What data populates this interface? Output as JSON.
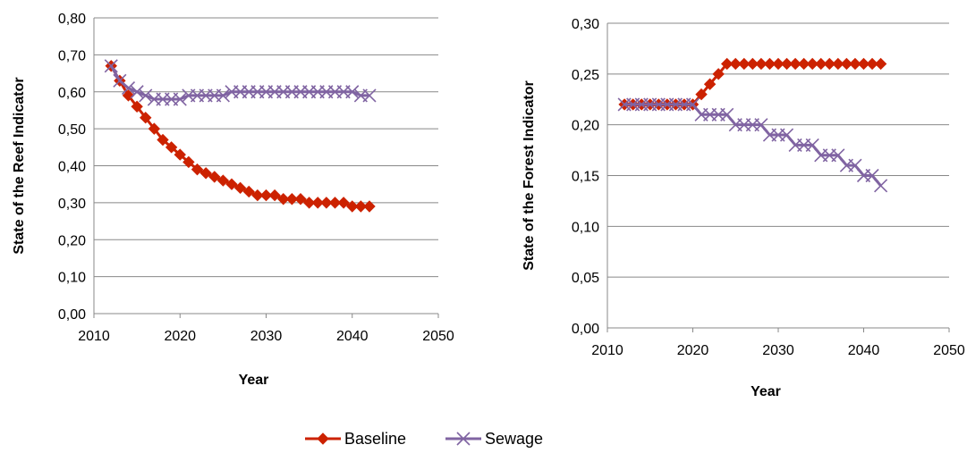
{
  "legend": {
    "entries": [
      {
        "label": "Baseline",
        "color": "#cc2200",
        "marker": "diamond"
      },
      {
        "label": "Sewage",
        "color": "#8064a2",
        "marker": "x"
      }
    ],
    "placement": "bottom-center"
  },
  "chart_data": [
    {
      "type": "line",
      "xlabel": "Year",
      "ylabel": "State of the Reef Indicator",
      "xlim": [
        2010,
        2050
      ],
      "ylim": [
        0,
        0.8
      ],
      "xticks": [
        "2010",
        "2020",
        "2030",
        "2040",
        "2050"
      ],
      "yticks": [
        "0,00",
        "0,10",
        "0,20",
        "0,30",
        "0,40",
        "0,50",
        "0,60",
        "0,70",
        "0,80"
      ],
      "grid": "horizontal",
      "x": [
        2012,
        2013,
        2014,
        2015,
        2016,
        2017,
        2018,
        2019,
        2020,
        2021,
        2022,
        2023,
        2024,
        2025,
        2026,
        2027,
        2028,
        2029,
        2030,
        2031,
        2032,
        2033,
        2034,
        2035,
        2036,
        2037,
        2038,
        2039,
        2040,
        2041,
        2042
      ],
      "series": [
        {
          "name": "Baseline",
          "color": "#cc2200",
          "marker": "diamond",
          "values": [
            0.67,
            0.63,
            0.59,
            0.56,
            0.53,
            0.5,
            0.47,
            0.45,
            0.43,
            0.41,
            0.39,
            0.38,
            0.37,
            0.36,
            0.35,
            0.34,
            0.33,
            0.32,
            0.32,
            0.32,
            0.31,
            0.31,
            0.31,
            0.3,
            0.3,
            0.3,
            0.3,
            0.3,
            0.29,
            0.29,
            0.29
          ]
        },
        {
          "name": "Sewage",
          "color": "#8064a2",
          "marker": "x",
          "values": [
            0.67,
            0.63,
            0.61,
            0.6,
            0.59,
            0.58,
            0.58,
            0.58,
            0.58,
            0.59,
            0.59,
            0.59,
            0.59,
            0.59,
            0.6,
            0.6,
            0.6,
            0.6,
            0.6,
            0.6,
            0.6,
            0.6,
            0.6,
            0.6,
            0.6,
            0.6,
            0.6,
            0.6,
            0.6,
            0.59,
            0.59
          ]
        }
      ]
    },
    {
      "type": "line",
      "xlabel": "Year",
      "ylabel": "State of the Forest Indicator",
      "xlim": [
        2010,
        2050
      ],
      "ylim": [
        0,
        0.3
      ],
      "xticks": [
        "2010",
        "2020",
        "2030",
        "2040",
        "2050"
      ],
      "yticks": [
        "0,00",
        "0,05",
        "0,10",
        "0,15",
        "0,20",
        "0,25",
        "0,30"
      ],
      "grid": "horizontal",
      "x": [
        2012,
        2013,
        2014,
        2015,
        2016,
        2017,
        2018,
        2019,
        2020,
        2021,
        2022,
        2023,
        2024,
        2025,
        2026,
        2027,
        2028,
        2029,
        2030,
        2031,
        2032,
        2033,
        2034,
        2035,
        2036,
        2037,
        2038,
        2039,
        2040,
        2041,
        2042
      ],
      "series": [
        {
          "name": "Baseline",
          "color": "#cc2200",
          "marker": "diamond",
          "values": [
            0.22,
            0.22,
            0.22,
            0.22,
            0.22,
            0.22,
            0.22,
            0.22,
            0.22,
            0.23,
            0.24,
            0.25,
            0.26,
            0.26,
            0.26,
            0.26,
            0.26,
            0.26,
            0.26,
            0.26,
            0.26,
            0.26,
            0.26,
            0.26,
            0.26,
            0.26,
            0.26,
            0.26,
            0.26,
            0.26,
            0.26
          ]
        },
        {
          "name": "Sewage",
          "color": "#8064a2",
          "marker": "x",
          "values": [
            0.22,
            0.22,
            0.22,
            0.22,
            0.22,
            0.22,
            0.22,
            0.22,
            0.22,
            0.21,
            0.21,
            0.21,
            0.21,
            0.2,
            0.2,
            0.2,
            0.2,
            0.19,
            0.19,
            0.19,
            0.18,
            0.18,
            0.18,
            0.17,
            0.17,
            0.17,
            0.16,
            0.16,
            0.15,
            0.15,
            0.14
          ]
        }
      ]
    }
  ]
}
